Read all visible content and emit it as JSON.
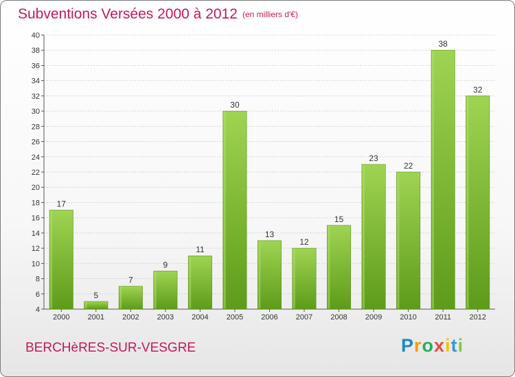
{
  "chart_data": {
    "type": "bar",
    "title": "Subventions Versées 2000 à 2012",
    "subtitle": "(en milliers d'€)",
    "categories": [
      "2000",
      "2001",
      "2002",
      "2003",
      "2004",
      "2005",
      "2006",
      "2007",
      "2008",
      "2009",
      "2010",
      "2011",
      "2012"
    ],
    "values": [
      17,
      5,
      7,
      9,
      11,
      30,
      13,
      12,
      15,
      23,
      22,
      38,
      32
    ],
    "ylim": [
      4,
      40
    ],
    "yticks": [
      4,
      6,
      8,
      10,
      12,
      14,
      16,
      18,
      20,
      22,
      24,
      26,
      28,
      30,
      32,
      34,
      36,
      38,
      40
    ],
    "xlabel": "",
    "ylabel": "",
    "grid": true,
    "bar_color": "#7cbb2f"
  },
  "footer": {
    "commune": "BERCHèRES-SUR-VESGRE",
    "brand": "Proxiti",
    "brand_letters": [
      {
        "ch": "P",
        "color": "#1e88c8"
      },
      {
        "ch": "r",
        "color": "#f39c12"
      },
      {
        "ch": "o",
        "color": "#27ae60"
      },
      {
        "ch": "x",
        "color": "#e74c3c"
      },
      {
        "ch": "i",
        "color": "#f1c40f"
      },
      {
        "ch": "t",
        "color": "#3498db"
      },
      {
        "ch": "i",
        "color": "#8bc34a"
      }
    ]
  }
}
